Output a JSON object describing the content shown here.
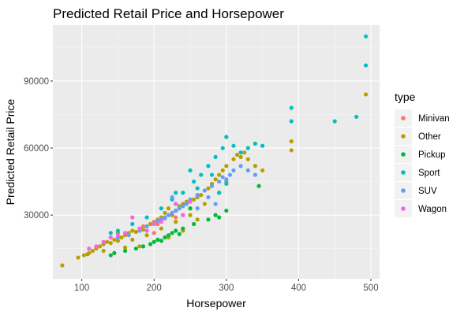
{
  "chart_data": {
    "type": "scatter",
    "title": "Predicted Retail Price and Horsepower",
    "xlabel": "Horsepower",
    "ylabel": "Predicted Retail Price",
    "xlim": [
      60,
      512
    ],
    "ylim": [
      1500,
      115000
    ],
    "x_ticks": [
      100,
      200,
      300,
      400,
      500
    ],
    "x_tick_labels": [
      "100",
      "200",
      "300",
      "400",
      "500"
    ],
    "y_ticks": [
      30000,
      60000,
      90000
    ],
    "y_tick_labels": [
      "30000",
      "60000",
      "90000"
    ],
    "grid": true,
    "panel_background": "#ebebeb",
    "legend_position": "right",
    "legend_title": "type",
    "series": [
      {
        "name": "Minivan",
        "color": "#F8766D",
        "points": [
          [
            200,
            27000
          ],
          [
            205,
            26000
          ],
          [
            215,
            28500
          ],
          [
            230,
            29000
          ],
          [
            240,
            30000
          ],
          [
            185,
            25000
          ],
          [
            200,
            22000
          ]
        ]
      },
      {
        "name": "Other",
        "color": "#B79F00",
        "points": [
          [
            73,
            7500
          ],
          [
            95,
            11000
          ],
          [
            103,
            12000
          ],
          [
            108,
            12500
          ],
          [
            110,
            13000
          ],
          [
            115,
            14000
          ],
          [
            120,
            15000
          ],
          [
            125,
            16000
          ],
          [
            130,
            17000
          ],
          [
            135,
            18000
          ],
          [
            140,
            17500
          ],
          [
            145,
            19000
          ],
          [
            150,
            18500
          ],
          [
            155,
            20000
          ],
          [
            160,
            21000
          ],
          [
            165,
            22000
          ],
          [
            170,
            23000
          ],
          [
            175,
            22500
          ],
          [
            180,
            24000
          ],
          [
            185,
            23500
          ],
          [
            190,
            25000
          ],
          [
            195,
            26000
          ],
          [
            200,
            26500
          ],
          [
            205,
            28000
          ],
          [
            210,
            29000
          ],
          [
            215,
            31000
          ],
          [
            220,
            33000
          ],
          [
            225,
            30000
          ],
          [
            230,
            32000
          ],
          [
            235,
            34000
          ],
          [
            240,
            35000
          ],
          [
            245,
            36000
          ],
          [
            250,
            33000
          ],
          [
            255,
            37000
          ],
          [
            260,
            38000
          ],
          [
            265,
            39000
          ],
          [
            270,
            41000
          ],
          [
            275,
            42000
          ],
          [
            280,
            44000
          ],
          [
            285,
            46000
          ],
          [
            290,
            48000
          ],
          [
            295,
            50000
          ],
          [
            300,
            52000
          ],
          [
            310,
            55000
          ],
          [
            315,
            57000
          ],
          [
            320,
            56000
          ],
          [
            325,
            58000
          ],
          [
            330,
            55000
          ],
          [
            340,
            52000
          ],
          [
            350,
            50000
          ],
          [
            390,
            63000
          ],
          [
            390,
            59000
          ],
          [
            493,
            84000
          ],
          [
            150,
            22000
          ],
          [
            170,
            19000
          ],
          [
            190,
            21000
          ],
          [
            210,
            24000
          ],
          [
            230,
            27000
          ],
          [
            250,
            30000
          ],
          [
            270,
            35000
          ],
          [
            290,
            40000
          ],
          [
            300,
            45000
          ],
          [
            240,
            23000
          ],
          [
            220,
            20000
          ],
          [
            180,
            16000
          ],
          [
            160,
            15500
          ],
          [
            130,
            14000
          ],
          [
            260,
            28000
          ]
        ]
      },
      {
        "name": "Pickup",
        "color": "#00BA38",
        "points": [
          [
            140,
            12000
          ],
          [
            145,
            13000
          ],
          [
            160,
            14000
          ],
          [
            175,
            15000
          ],
          [
            185,
            16000
          ],
          [
            195,
            17000
          ],
          [
            200,
            18000
          ],
          [
            205,
            19000
          ],
          [
            210,
            18500
          ],
          [
            215,
            20000
          ],
          [
            220,
            21000
          ],
          [
            225,
            22000
          ],
          [
            230,
            23000
          ],
          [
            235,
            21500
          ],
          [
            240,
            24000
          ],
          [
            255,
            26000
          ],
          [
            275,
            28000
          ],
          [
            285,
            30000
          ],
          [
            290,
            29000
          ],
          [
            300,
            32000
          ],
          [
            345,
            43000
          ],
          [
            250,
            33000
          ],
          [
            230,
            35000
          ]
        ]
      },
      {
        "name": "Sport",
        "color": "#00BFC4",
        "points": [
          [
            140,
            22000
          ],
          [
            150,
            23000
          ],
          [
            170,
            26000
          ],
          [
            190,
            29000
          ],
          [
            210,
            33000
          ],
          [
            225,
            37000
          ],
          [
            240,
            40000
          ],
          [
            255,
            45000
          ],
          [
            265,
            48000
          ],
          [
            275,
            52000
          ],
          [
            285,
            56000
          ],
          [
            295,
            60000
          ],
          [
            300,
            65000
          ],
          [
            310,
            61000
          ],
          [
            320,
            58000
          ],
          [
            330,
            60000
          ],
          [
            340,
            62000
          ],
          [
            350,
            61000
          ],
          [
            390,
            78000
          ],
          [
            390,
            72000
          ],
          [
            450,
            72000
          ],
          [
            480,
            74000
          ],
          [
            493,
            110000
          ],
          [
            493,
            97000
          ],
          [
            230,
            40000
          ],
          [
            260,
            42000
          ],
          [
            280,
            48000
          ],
          [
            300,
            44000
          ],
          [
            250,
            50000
          ],
          [
            290,
            40000
          ]
        ]
      },
      {
        "name": "SUV",
        "color": "#619CFF",
        "points": [
          [
            150,
            20000
          ],
          [
            165,
            21000
          ],
          [
            180,
            23000
          ],
          [
            190,
            25000
          ],
          [
            200,
            26000
          ],
          [
            205,
            27500
          ],
          [
            210,
            28000
          ],
          [
            215,
            29000
          ],
          [
            220,
            30000
          ],
          [
            225,
            31000
          ],
          [
            230,
            32000
          ],
          [
            235,
            33000
          ],
          [
            240,
            34000
          ],
          [
            245,
            35000
          ],
          [
            250,
            37000
          ],
          [
            260,
            39000
          ],
          [
            270,
            41000
          ],
          [
            280,
            43000
          ],
          [
            290,
            45000
          ],
          [
            295,
            47000
          ],
          [
            300,
            46000
          ],
          [
            305,
            48000
          ],
          [
            310,
            50000
          ],
          [
            320,
            52000
          ],
          [
            330,
            50000
          ],
          [
            340,
            48000
          ],
          [
            225,
            38000
          ],
          [
            260,
            33000
          ],
          [
            285,
            35000
          ],
          [
            275,
            38000
          ]
        ]
      },
      {
        "name": "Wagon",
        "color": "#F564E3",
        "points": [
          [
            110,
            15000
          ],
          [
            120,
            16000
          ],
          [
            130,
            18000
          ],
          [
            140,
            20000
          ],
          [
            150,
            21000
          ],
          [
            160,
            22000
          ],
          [
            170,
            29000
          ],
          [
            180,
            24000
          ],
          [
            190,
            23000
          ],
          [
            200,
            26000
          ],
          [
            210,
            27000
          ],
          [
            230,
            35000
          ],
          [
            240,
            30000
          ],
          [
            250,
            36000
          ]
        ]
      }
    ]
  }
}
